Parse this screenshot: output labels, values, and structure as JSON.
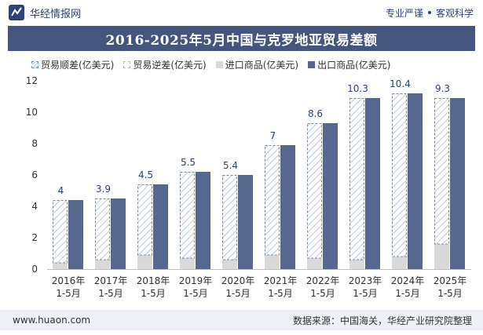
{
  "header": {
    "brand": "华经情报网",
    "slogan_left": "专业严谨",
    "slogan_right": "客观科学"
  },
  "title": "2016-2025年5月中国与克罗地亚贸易差额",
  "legend": {
    "surplus": "贸易顺差(亿美元)",
    "deficit": "贸易逆差(亿美元)",
    "import": "进口商品(亿美元)",
    "export": "出口商品(亿美元)"
  },
  "footer": {
    "website": "www.huaon.com",
    "source": "数据来源：中国海关，华经产业研究院整理"
  },
  "colors": {
    "title_bg": "#44567e",
    "export": "#56688f",
    "import": "#d9d9d9",
    "surplus_stroke": "#6f8fb8",
    "label": "#2d4373"
  },
  "chart_data": {
    "type": "bar",
    "categories": [
      [
        "2016年",
        "1-5月"
      ],
      [
        "2017年",
        "1-5月"
      ],
      [
        "2018年",
        "1-5月"
      ],
      [
        "2019年",
        "1-5月"
      ],
      [
        "2020年",
        "1-5月"
      ],
      [
        "2021年",
        "1-5月"
      ],
      [
        "2022年",
        "1-5月"
      ],
      [
        "2023年",
        "1-5月"
      ],
      [
        "2024年",
        "1-5月"
      ],
      [
        "2025年",
        "1-5月"
      ]
    ],
    "series": [
      {
        "name": "贸易顺差(亿美元)",
        "values": [
          4,
          3.9,
          4.5,
          5.5,
          5.4,
          7,
          8.6,
          10.3,
          10.4,
          9.3
        ]
      },
      {
        "name": "贸易逆差(亿美元)",
        "values": [
          0,
          0,
          0,
          0,
          0,
          0,
          0,
          0,
          0,
          0
        ]
      },
      {
        "name": "进口商品(亿美元)",
        "values": [
          0.4,
          0.6,
          0.9,
          0.7,
          0.6,
          0.9,
          0.7,
          0.6,
          0.8,
          1.6
        ]
      },
      {
        "name": "出口商品(亿美元)",
        "values": [
          4.4,
          4.5,
          5.4,
          6.2,
          6.0,
          7.9,
          9.3,
          10.9,
          11.2,
          10.9
        ]
      }
    ],
    "ylim": [
      0,
      12
    ],
    "yticks": [
      0,
      2,
      4,
      6,
      8,
      10,
      12
    ],
    "grid": false,
    "legend_position": "top"
  }
}
